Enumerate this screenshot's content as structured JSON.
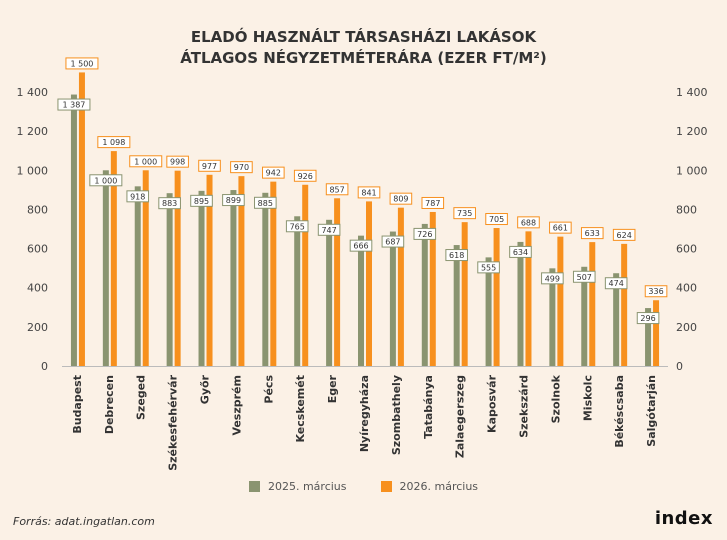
{
  "chart_data": {
    "type": "bar",
    "title_line1": "ELADÓ HASZNÁLT TÁRSASHÁZI LAKÁSOK",
    "title_line2": "ÁTLAGOS NÉGYZETMÉTERÁRA (EZER FT/M²)",
    "categories": [
      "Budapest",
      "Debrecen",
      "Szeged",
      "Székesfehérvár",
      "Győr",
      "Veszprém",
      "Pécs",
      "Kecskemét",
      "Eger",
      "Nyíregyháza",
      "Szombathely",
      "Tatabánya",
      "Zalaegerszeg",
      "Kaposvár",
      "Szekszárd",
      "Szolnok",
      "Miskolc",
      "Békéscsaba",
      "Salgótarján"
    ],
    "series": [
      {
        "name": "2025. március",
        "color": "#8a9470",
        "values": [
          1387,
          1000,
          918,
          883,
          895,
          899,
          885,
          765,
          747,
          666,
          687,
          726,
          618,
          555,
          634,
          499,
          507,
          474,
          296
        ],
        "labels": [
          "1 387",
          "1 000",
          "918",
          "883",
          "895",
          "899",
          "885",
          "765",
          "747",
          "666",
          "687",
          "726",
          "618",
          "555",
          "634",
          "499",
          "507",
          "474",
          "296"
        ]
      },
      {
        "name": "2026. március",
        "color": "#f7901e",
        "values": [
          1500,
          1098,
          1000,
          998,
          977,
          970,
          942,
          926,
          857,
          841,
          809,
          787,
          735,
          705,
          688,
          661,
          633,
          624,
          336
        ],
        "labels": [
          "1 500",
          "1 098",
          "1 000",
          "998",
          "977",
          "970",
          "942",
          "926",
          "857",
          "841",
          "809",
          "787",
          "735",
          "705",
          "688",
          "661",
          "633",
          "624",
          "336"
        ]
      }
    ],
    "ylim": [
      0,
      1400
    ],
    "yticks": [
      0,
      200,
      400,
      600,
      800,
      1000,
      1200,
      1400
    ],
    "ytick_labels": [
      "0",
      "200",
      "400",
      "600",
      "800",
      "1 000",
      "1 200",
      "1 400"
    ],
    "legend_position": "bottom",
    "grid": false
  },
  "source": "Forrás: adat.ingatlan.com",
  "logo": "index"
}
